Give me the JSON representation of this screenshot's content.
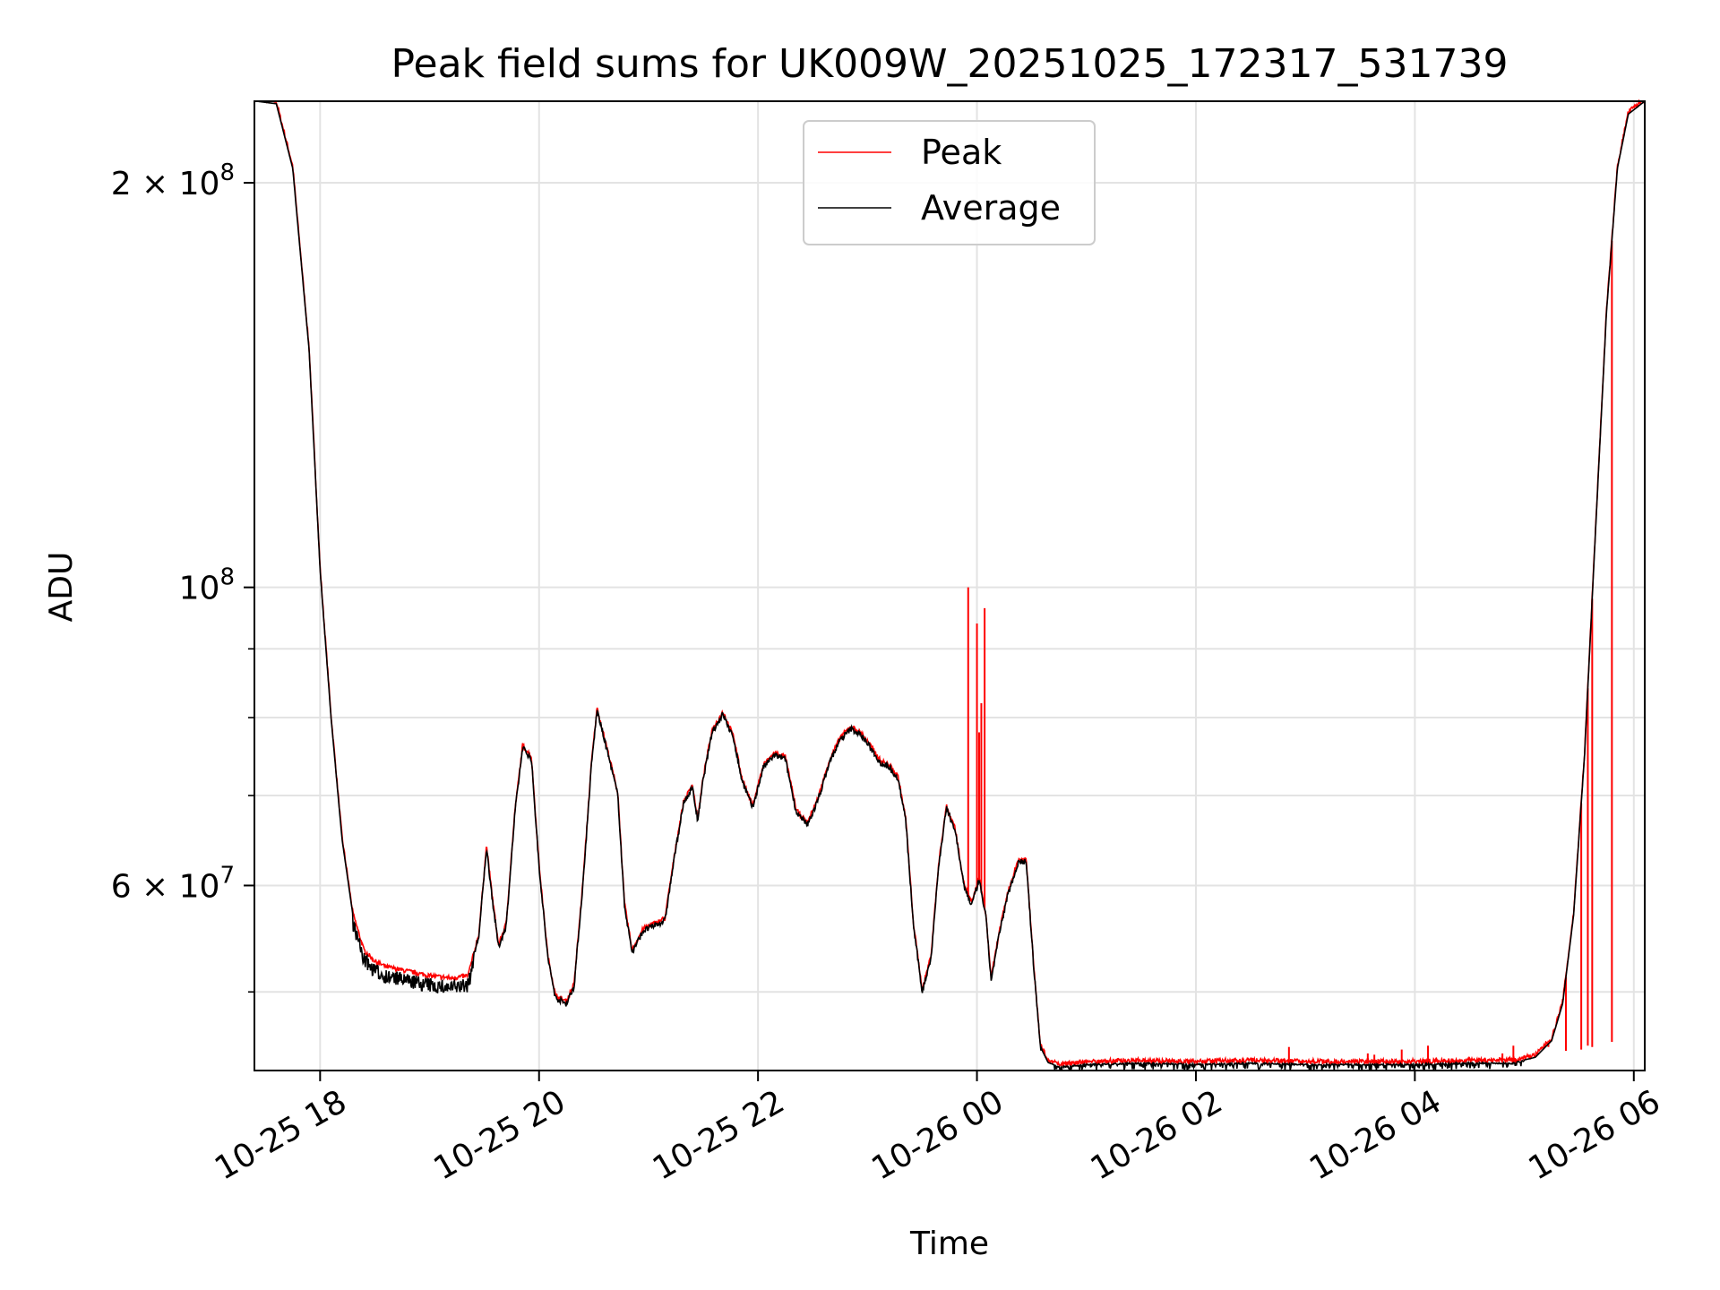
{
  "chart_data": {
    "type": "line",
    "title": "Peak field sums for UK009W_20251025_172317_531739",
    "xlabel": "Time",
    "ylabel": "ADU",
    "yscale": "log",
    "ylim": [
      43700000,
      230000000
    ],
    "xlim_hours": [
      17.4,
      30.1
    ],
    "grid": true,
    "legend_position": "top-center",
    "x_ticks": [
      {
        "hour": 18,
        "label": "10-25 18"
      },
      {
        "hour": 20,
        "label": "10-25 20"
      },
      {
        "hour": 22,
        "label": "10-25 22"
      },
      {
        "hour": 24,
        "label": "10-26 00"
      },
      {
        "hour": 26,
        "label": "10-26 02"
      },
      {
        "hour": 28,
        "label": "10-26 04"
      },
      {
        "hour": 30,
        "label": "10-26 06"
      }
    ],
    "y_major_ticks": [
      {
        "value": 200000000,
        "mantissa": "2",
        "exp": "8"
      },
      {
        "value": 100000000,
        "mantissa": "",
        "exp": "8"
      },
      {
        "value": 60000000,
        "mantissa": "6",
        "exp": "7"
      }
    ],
    "y_minor_ticks": [
      50000000,
      70000000,
      80000000,
      90000000
    ],
    "series": [
      {
        "name": "Peak",
        "color": "#ff0000"
      },
      {
        "name": "Average",
        "color": "#000000"
      }
    ],
    "average_points": [
      [
        17.42,
        230000000
      ],
      [
        17.6,
        229000000
      ],
      [
        17.75,
        205000000
      ],
      [
        17.9,
        150000000
      ],
      [
        18.0,
        103000000
      ],
      [
        18.1,
        80000000
      ],
      [
        18.2,
        65000000
      ],
      [
        18.3,
        57000000
      ],
      [
        18.4,
        53500000
      ],
      [
        18.5,
        52500000
      ],
      [
        18.6,
        52000000
      ],
      [
        18.7,
        51800000
      ],
      [
        18.85,
        51500000
      ],
      [
        19.0,
        51200000
      ],
      [
        19.2,
        51000000
      ],
      [
        19.35,
        51200000
      ],
      [
        19.45,
        55000000
      ],
      [
        19.52,
        64000000
      ],
      [
        19.58,
        58000000
      ],
      [
        19.63,
        54000000
      ],
      [
        19.7,
        56000000
      ],
      [
        19.78,
        68000000
      ],
      [
        19.85,
        76000000
      ],
      [
        19.93,
        74500000
      ],
      [
        20.0,
        62000000
      ],
      [
        20.08,
        53000000
      ],
      [
        20.15,
        49500000
      ],
      [
        20.25,
        49000000
      ],
      [
        20.32,
        50500000
      ],
      [
        20.4,
        60000000
      ],
      [
        20.48,
        74000000
      ],
      [
        20.53,
        81000000
      ],
      [
        20.58,
        78000000
      ],
      [
        20.65,
        74000000
      ],
      [
        20.72,
        70000000
      ],
      [
        20.78,
        58000000
      ],
      [
        20.85,
        53500000
      ],
      [
        20.95,
        55500000
      ],
      [
        21.05,
        56000000
      ],
      [
        21.15,
        56500000
      ],
      [
        21.25,
        64000000
      ],
      [
        21.32,
        69000000
      ],
      [
        21.4,
        71000000
      ],
      [
        21.45,
        67000000
      ],
      [
        21.5,
        72000000
      ],
      [
        21.58,
        78000000
      ],
      [
        21.68,
        80500000
      ],
      [
        21.78,
        77000000
      ],
      [
        21.85,
        72000000
      ],
      [
        21.95,
        68500000
      ],
      [
        22.05,
        73500000
      ],
      [
        22.15,
        75000000
      ],
      [
        22.25,
        74500000
      ],
      [
        22.35,
        68000000
      ],
      [
        22.45,
        66500000
      ],
      [
        22.55,
        69500000
      ],
      [
        22.65,
        74000000
      ],
      [
        22.75,
        77000000
      ],
      [
        22.85,
        78500000
      ],
      [
        22.95,
        77500000
      ],
      [
        23.05,
        75500000
      ],
      [
        23.12,
        74000000
      ],
      [
        23.2,
        73500000
      ],
      [
        23.28,
        72000000
      ],
      [
        23.35,
        67000000
      ],
      [
        23.42,
        56000000
      ],
      [
        23.5,
        50000000
      ],
      [
        23.58,
        53000000
      ],
      [
        23.65,
        62000000
      ],
      [
        23.72,
        68500000
      ],
      [
        23.8,
        66000000
      ],
      [
        23.88,
        60000000
      ],
      [
        23.95,
        58000000
      ],
      [
        24.02,
        60500000
      ],
      [
        24.08,
        57000000
      ],
      [
        24.13,
        51000000
      ],
      [
        24.2,
        55000000
      ],
      [
        24.28,
        59000000
      ],
      [
        24.38,
        62500000
      ],
      [
        24.45,
        62500000
      ],
      [
        24.52,
        52000000
      ],
      [
        24.58,
        45500000
      ],
      [
        24.65,
        44300000
      ],
      [
        24.75,
        44000000
      ],
      [
        25.0,
        44200000
      ],
      [
        25.5,
        44300000
      ],
      [
        26.0,
        44200000
      ],
      [
        26.5,
        44300000
      ],
      [
        27.0,
        44200000
      ],
      [
        27.5,
        44200000
      ],
      [
        28.0,
        44200000
      ],
      [
        28.5,
        44300000
      ],
      [
        28.9,
        44300000
      ],
      [
        29.1,
        44700000
      ],
      [
        29.25,
        46000000
      ],
      [
        29.35,
        49000000
      ],
      [
        29.45,
        57000000
      ],
      [
        29.55,
        75000000
      ],
      [
        29.65,
        110000000
      ],
      [
        29.75,
        160000000
      ],
      [
        29.85,
        205000000
      ],
      [
        29.95,
        225000000
      ],
      [
        30.1,
        230000000
      ]
    ],
    "peak_spikes": [
      [
        23.92,
        100000000
      ],
      [
        24.0,
        94000000
      ],
      [
        24.04,
        82000000
      ],
      [
        24.07,
        96500000
      ],
      [
        24.02,
        78000000
      ],
      [
        26.85,
        45500000
      ],
      [
        27.57,
        45000000
      ],
      [
        27.63,
        44900000
      ],
      [
        27.88,
        45300000
      ],
      [
        28.12,
        45600000
      ],
      [
        28.8,
        45000000
      ],
      [
        28.9,
        45600000
      ],
      [
        29.05,
        44900000
      ],
      [
        29.18,
        45700000
      ],
      [
        29.22,
        45500000
      ],
      [
        29.38,
        45200000
      ],
      [
        29.52,
        45300000
      ],
      [
        29.58,
        45600000
      ],
      [
        29.62,
        45500000
      ],
      [
        29.8,
        45900000
      ]
    ]
  }
}
